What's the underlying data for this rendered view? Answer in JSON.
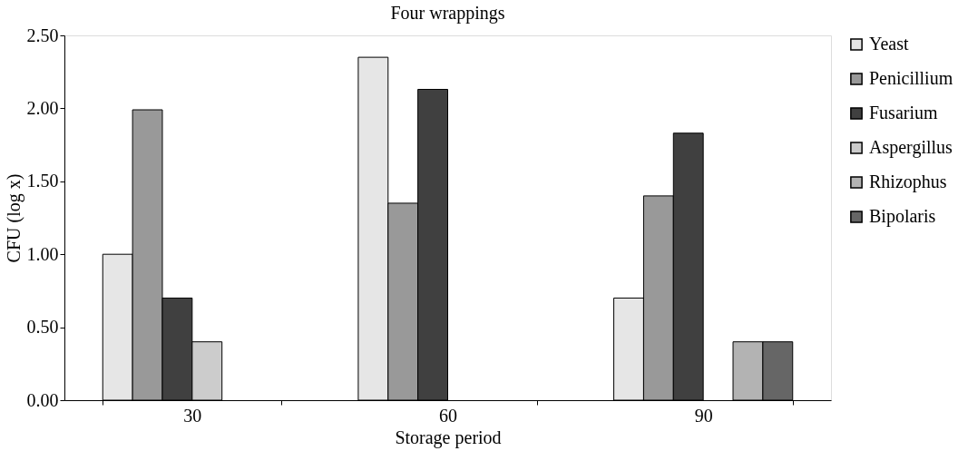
{
  "chart_data": {
    "type": "bar",
    "title": "Four wrappings",
    "xlabel": "Storage period",
    "ylabel": "CFU (log x)",
    "categories": [
      "30",
      "60",
      "90"
    ],
    "series": [
      {
        "name": "Yeast",
        "color": "#e6e6e6",
        "values": [
          1.0,
          2.35,
          0.7
        ]
      },
      {
        "name": "Penicillium",
        "color": "#999999",
        "values": [
          1.99,
          1.35,
          1.4
        ]
      },
      {
        "name": "Fusarium",
        "color": "#404040",
        "values": [
          0.7,
          2.13,
          1.83
        ]
      },
      {
        "name": "Aspergillus",
        "color": "#cccccc",
        "values": [
          0.4,
          null,
          null
        ]
      },
      {
        "name": "Rhizophus",
        "color": "#b3b3b3",
        "values": [
          null,
          null,
          0.4
        ]
      },
      {
        "name": "Bipolaris",
        "color": "#666666",
        "values": [
          null,
          null,
          0.4
        ]
      }
    ],
    "ylim": [
      0,
      2.5
    ],
    "yticks": [
      {
        "value": 0,
        "label": "0.00"
      },
      {
        "value": 0.5,
        "label": "0.50"
      },
      {
        "value": 1,
        "label": "1.00"
      },
      {
        "value": 1.5,
        "label": "1.50"
      },
      {
        "value": 2,
        "label": "2.00"
      },
      {
        "value": 2.5,
        "label": "2.50"
      }
    ],
    "grid": false,
    "legend": "right"
  }
}
